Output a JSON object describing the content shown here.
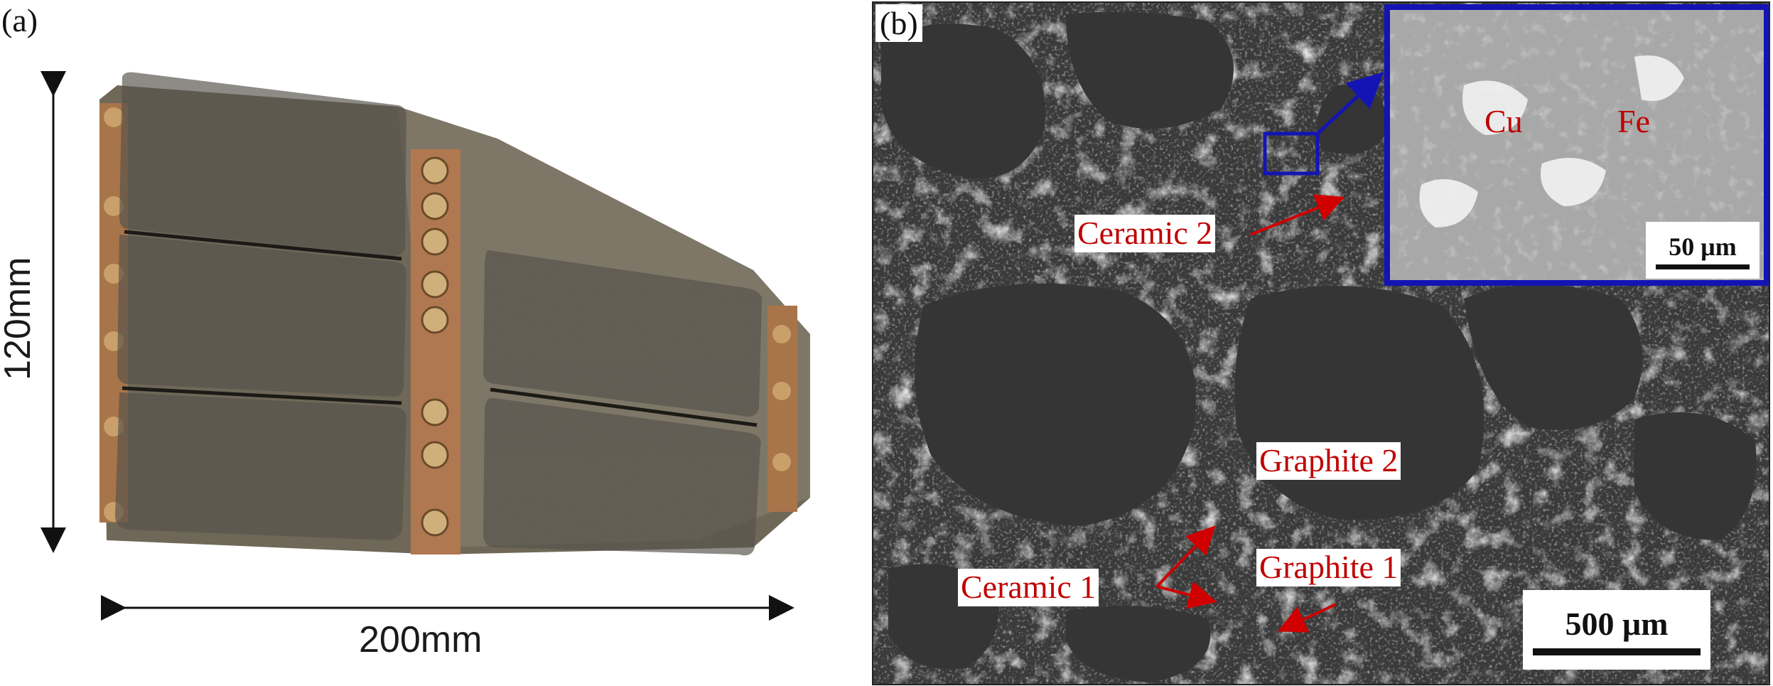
{
  "panels": {
    "a": {
      "label": "(a)",
      "height_label": "120mm",
      "width_label": "200mm"
    },
    "b": {
      "label": "(b)",
      "labels": {
        "ceramic2": "Ceramic 2",
        "graphite2": "Graphite 2",
        "ceramic1": "Ceramic 1",
        "graphite1": "Graphite 1"
      },
      "scale_bar": "500 μm",
      "inset": {
        "cu": "Cu",
        "fe": "Fe",
        "scale_bar": "50 μm"
      }
    }
  },
  "colors": {
    "annotation_red": "#c00000",
    "inset_border": "#1414b4",
    "pad_friction": "#4a4740",
    "copper": "#b07850",
    "sem_dark": "#3a3a3a",
    "sem_light": "#c8c8c8"
  }
}
